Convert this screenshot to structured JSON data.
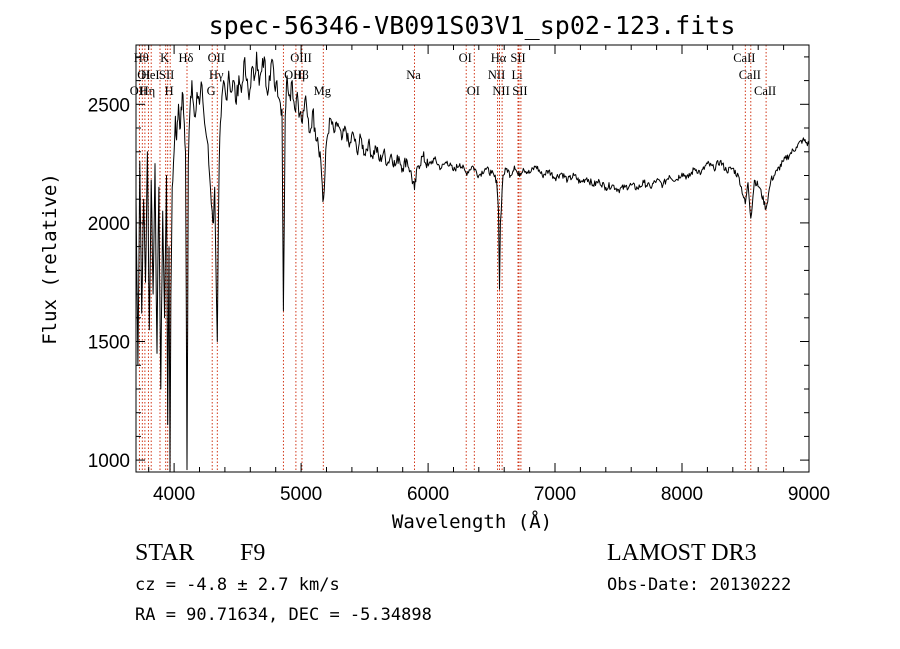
{
  "chart_data": {
    "type": "line",
    "title": "spec-56346-VB091S03V1_sp02-123.fits",
    "xlabel": "Wavelength (Å)",
    "ylabel": "Flux (relative)",
    "xlim": [
      3700,
      9000
    ],
    "ylim": [
      950,
      2750
    ],
    "x_ticks": [
      4000,
      5000,
      6000,
      7000,
      8000,
      9000
    ],
    "y_ticks": [
      1000,
      1500,
      2000,
      2500
    ],
    "series": [
      {
        "name": "flux",
        "points": [
          [
            3700,
            2120
          ],
          [
            3715,
            1400
          ],
          [
            3730,
            2260
          ],
          [
            3745,
            1620
          ],
          [
            3760,
            2100
          ],
          [
            3775,
            1750
          ],
          [
            3790,
            2300
          ],
          [
            3805,
            1550
          ],
          [
            3820,
            2180
          ],
          [
            3835,
            1700
          ],
          [
            3850,
            2250
          ],
          [
            3865,
            1450
          ],
          [
            3880,
            2150
          ],
          [
            3895,
            1300
          ],
          [
            3910,
            2050
          ],
          [
            3925,
            1600
          ],
          [
            3940,
            2200
          ],
          [
            3950,
            1150
          ],
          [
            3960,
            1900
          ],
          [
            3968,
            950
          ],
          [
            3975,
            1700
          ],
          [
            3985,
            2150
          ],
          [
            4000,
            2300
          ],
          [
            4010,
            2450
          ],
          [
            4020,
            2350
          ],
          [
            4035,
            2500
          ],
          [
            4050,
            2400
          ],
          [
            4065,
            2550
          ],
          [
            4080,
            2420
          ],
          [
            4090,
            2300
          ],
          [
            4102,
            960
          ],
          [
            4112,
            2250
          ],
          [
            4125,
            2480
          ],
          [
            4140,
            2600
          ],
          [
            4160,
            2450
          ],
          [
            4180,
            2550
          ],
          [
            4200,
            2500
          ],
          [
            4220,
            2580
          ],
          [
            4240,
            2420
          ],
          [
            4260,
            2350
          ],
          [
            4280,
            2200
          ],
          [
            4300,
            2050
          ],
          [
            4310,
            2000
          ],
          [
            4320,
            2150
          ],
          [
            4340,
            1500
          ],
          [
            4355,
            2250
          ],
          [
            4370,
            2450
          ],
          [
            4390,
            2600
          ],
          [
            4410,
            2520
          ],
          [
            4430,
            2640
          ],
          [
            4450,
            2550
          ],
          [
            4470,
            2600
          ],
          [
            4490,
            2500
          ],
          [
            4510,
            2620
          ],
          [
            4530,
            2550
          ],
          [
            4550,
            2680
          ],
          [
            4570,
            2600
          ],
          [
            4590,
            2520
          ],
          [
            4610,
            2650
          ],
          [
            4630,
            2600
          ],
          [
            4650,
            2720
          ],
          [
            4670,
            2580
          ],
          [
            4690,
            2640
          ],
          [
            4710,
            2700
          ],
          [
            4730,
            2560
          ],
          [
            4750,
            2620
          ],
          [
            4770,
            2690
          ],
          [
            4790,
            2580
          ],
          [
            4810,
            2600
          ],
          [
            4830,
            2520
          ],
          [
            4850,
            2480
          ],
          [
            4861,
            1630
          ],
          [
            4875,
            2450
          ],
          [
            4890,
            2620
          ],
          [
            4910,
            2540
          ],
          [
            4930,
            2600
          ],
          [
            4950,
            2480
          ],
          [
            4970,
            2550
          ],
          [
            4990,
            2460
          ],
          [
            5010,
            2420
          ],
          [
            5030,
            2520
          ],
          [
            5050,
            2450
          ],
          [
            5070,
            2380
          ],
          [
            5090,
            2470
          ],
          [
            5110,
            2400
          ],
          [
            5130,
            2360
          ],
          [
            5150,
            2300
          ],
          [
            5167,
            2160
          ],
          [
            5172,
            2090
          ],
          [
            5183,
            2140
          ],
          [
            5200,
            2340
          ],
          [
            5230,
            2440
          ],
          [
            5260,
            2380
          ],
          [
            5290,
            2420
          ],
          [
            5320,
            2350
          ],
          [
            5350,
            2400
          ],
          [
            5380,
            2320
          ],
          [
            5410,
            2380
          ],
          [
            5440,
            2300
          ],
          [
            5470,
            2360
          ],
          [
            5500,
            2290
          ],
          [
            5530,
            2340
          ],
          [
            5560,
            2280
          ],
          [
            5590,
            2320
          ],
          [
            5620,
            2260
          ],
          [
            5650,
            2300
          ],
          [
            5680,
            2250
          ],
          [
            5710,
            2290
          ],
          [
            5740,
            2240
          ],
          [
            5770,
            2280
          ],
          [
            5800,
            2230
          ],
          [
            5830,
            2270
          ],
          [
            5860,
            2220
          ],
          [
            5893,
            2140
          ],
          [
            5920,
            2240
          ],
          [
            5960,
            2280
          ],
          [
            6000,
            2240
          ],
          [
            6050,
            2270
          ],
          [
            6100,
            2230
          ],
          [
            6150,
            2260
          ],
          [
            6200,
            2220
          ],
          [
            6250,
            2250
          ],
          [
            6300,
            2210
          ],
          [
            6350,
            2240
          ],
          [
            6400,
            2200
          ],
          [
            6450,
            2230
          ],
          [
            6500,
            2210
          ],
          [
            6540,
            2180
          ],
          [
            6555,
            2050
          ],
          [
            6563,
            1720
          ],
          [
            6570,
            2000
          ],
          [
            6590,
            2200
          ],
          [
            6620,
            2230
          ],
          [
            6650,
            2200
          ],
          [
            6680,
            2240
          ],
          [
            6710,
            2200
          ],
          [
            6750,
            2230
          ],
          [
            6800,
            2210
          ],
          [
            6850,
            2240
          ],
          [
            6900,
            2200
          ],
          [
            6950,
            2220
          ],
          [
            7000,
            2190
          ],
          [
            7050,
            2210
          ],
          [
            7100,
            2180
          ],
          [
            7150,
            2200
          ],
          [
            7200,
            2170
          ],
          [
            7250,
            2190
          ],
          [
            7300,
            2160
          ],
          [
            7350,
            2175
          ],
          [
            7400,
            2150
          ],
          [
            7450,
            2160
          ],
          [
            7500,
            2140
          ],
          [
            7550,
            2150
          ],
          [
            7600,
            2160
          ],
          [
            7650,
            2145
          ],
          [
            7700,
            2170
          ],
          [
            7750,
            2150
          ],
          [
            7800,
            2180
          ],
          [
            7850,
            2160
          ],
          [
            7900,
            2200
          ],
          [
            7950,
            2180
          ],
          [
            8000,
            2210
          ],
          [
            8050,
            2190
          ],
          [
            8100,
            2230
          ],
          [
            8150,
            2210
          ],
          [
            8200,
            2250
          ],
          [
            8250,
            2230
          ],
          [
            8300,
            2260
          ],
          [
            8350,
            2220
          ],
          [
            8400,
            2230
          ],
          [
            8450,
            2190
          ],
          [
            8498,
            2080
          ],
          [
            8520,
            2170
          ],
          [
            8542,
            2020
          ],
          [
            8570,
            2180
          ],
          [
            8610,
            2150
          ],
          [
            8662,
            2060
          ],
          [
            8700,
            2180
          ],
          [
            8750,
            2220
          ],
          [
            8800,
            2260
          ],
          [
            8850,
            2290
          ],
          [
            8900,
            2320
          ],
          [
            8950,
            2350
          ],
          [
            9000,
            2330
          ]
        ]
      }
    ],
    "lines": [
      {
        "w": 3727,
        "labels": [
          "OII"
        ],
        "row": 3
      },
      {
        "w": 3750,
        "labels": [
          "Hθ"
        ],
        "row": 1
      },
      {
        "w": 3770,
        "labels": [
          "OI"
        ],
        "row": 2
      },
      {
        "w": 3798,
        "labels": [
          "Hη"
        ],
        "row": 3
      },
      {
        "w": 3820,
        "labels": [
          "HeI"
        ],
        "row": 2
      },
      {
        "w": 3889,
        "labels": [],
        "row": 0
      },
      {
        "w": 3934,
        "labels": [
          "K"
        ],
        "row": 1
      },
      {
        "w": 3950,
        "labels": [
          "SII"
        ],
        "row": 2
      },
      {
        "w": 3969,
        "labels": [
          "H"
        ],
        "row": 3
      },
      {
        "w": 4102,
        "labels": [
          "Hδ"
        ],
        "row": 1
      },
      {
        "w": 4300,
        "labels": [
          "G"
        ],
        "row": 3
      },
      {
        "w": 4340,
        "labels": [
          "OII",
          "Hγ"
        ],
        "row": 1
      },
      {
        "w": 4861,
        "labels": [],
        "row": 0
      },
      {
        "w": 4959,
        "labels": [
          "OIII"
        ],
        "row": 2
      },
      {
        "w": 5007,
        "labels": [
          "OIII",
          "Hβ"
        ],
        "row": 1
      },
      {
        "w": 5175,
        "labels": [
          "Mg"
        ],
        "row": 3
      },
      {
        "w": 5893,
        "labels": [
          "Na"
        ],
        "row": 2
      },
      {
        "w": 6300,
        "labels": [
          "OI"
        ],
        "row": 1
      },
      {
        "w": 6364,
        "labels": [
          "OI"
        ],
        "row": 3
      },
      {
        "w": 6548,
        "labels": [
          "NII"
        ],
        "row": 2
      },
      {
        "w": 6563,
        "labels": [
          "Hα"
        ],
        "row": 1
      },
      {
        "w": 6583,
        "labels": [
          "NII"
        ],
        "row": 3
      },
      {
        "w": 6708,
        "labels": [
          "Li"
        ],
        "row": 2
      },
      {
        "w": 6716,
        "labels": [
          "SII"
        ],
        "row": 1
      },
      {
        "w": 6731,
        "labels": [
          "SII"
        ],
        "row": 3
      },
      {
        "w": 8498,
        "labels": [
          "CaII"
        ],
        "row": 1
      },
      {
        "w": 8542,
        "labels": [
          "CaII"
        ],
        "row": 2
      },
      {
        "w": 8662,
        "labels": [
          "CaII"
        ],
        "row": 3
      }
    ],
    "line_color": "#cc2200",
    "data_color": "#000000"
  },
  "info": {
    "class_label": "STAR",
    "subclass": "F9",
    "cz": "cz = -4.8 ± 2.7 km/s",
    "radec": "RA =  90.71634, DEC =  -5.34898",
    "survey": "LAMOST DR3",
    "obs_date": "Obs-Date: 20130222"
  }
}
